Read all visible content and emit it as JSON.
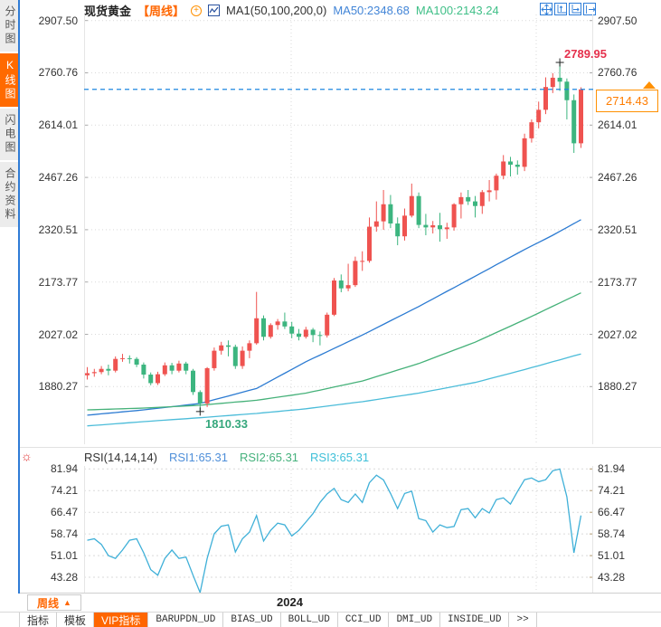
{
  "header": {
    "symbol": "现货黄金",
    "period": "【周线】",
    "ma_settings": "MA1(50,100,200,0)",
    "ma50_label": "MA50:2348.68",
    "ma100_label": "MA100:2143.24"
  },
  "sidebar": {
    "items": [
      {
        "label": "分时图",
        "active": false
      },
      {
        "label": "K线图",
        "active": true
      },
      {
        "label": "闪电图",
        "active": false
      },
      {
        "label": "合约资料",
        "active": false
      }
    ]
  },
  "annotations": {
    "high": "2789.95",
    "low": "1810.33",
    "current_price": "2714.43"
  },
  "rsi_header": {
    "title": "RSI(14,14,14)",
    "rsi1": "RSI1:65.31",
    "rsi2": "RSI2:65.31",
    "rsi3": "RSI3:65.31"
  },
  "bottom": {
    "period_button": "周线",
    "period_arrow": "▲",
    "year_label": "2024",
    "tabs": [
      {
        "label": "指标",
        "active": false,
        "en": false
      },
      {
        "label": "模板",
        "active": false,
        "en": false
      },
      {
        "label": "VIP指标",
        "active": true,
        "en": false
      },
      {
        "label": "BARUPDN_UD",
        "active": false,
        "en": true
      },
      {
        "label": "BIAS_UD",
        "active": false,
        "en": true
      },
      {
        "label": "BOLL_UD",
        "active": false,
        "en": true
      },
      {
        "label": "CCI_UD",
        "active": false,
        "en": true
      },
      {
        "label": "DMI_UD",
        "active": false,
        "en": true
      },
      {
        "label": "INSIDE_UD",
        "active": false,
        "en": true
      },
      {
        "label": ">>",
        "active": false,
        "en": true
      }
    ]
  },
  "colors": {
    "accent": "#ff6600",
    "up_candle": "#ef5350",
    "down_candle": "#3cb57f",
    "ma50": "#2c7bd2",
    "ma100": "#45b179",
    "ma200": "#4bbcd9",
    "rsi_line": "#3fb0d8",
    "current_price_line": "#1e87e0",
    "high_label": "#e5304c",
    "low_label": "#35a77c"
  },
  "chart_data": [
    {
      "type": "candlestick",
      "title": "现货黄金 周线",
      "y_ticks": [
        2907.5,
        2760.76,
        2614.01,
        2467.26,
        2320.51,
        2173.77,
        2027.02,
        1880.27
      ],
      "x_axis_label": "2024",
      "high": 2789.95,
      "low": 1810.33,
      "current": 2714.43,
      "high_index": 67,
      "low_index": 16,
      "candles_ohlc": [
        [
          1912,
          1935,
          1900,
          1918
        ],
        [
          1918,
          1930,
          1908,
          1921
        ],
        [
          1921,
          1938,
          1915,
          1930
        ],
        [
          1930,
          1942,
          1912,
          1925
        ],
        [
          1925,
          1965,
          1920,
          1958
        ],
        [
          1958,
          1972,
          1950,
          1960
        ],
        [
          1960,
          1968,
          1945,
          1958
        ],
        [
          1958,
          1963,
          1935,
          1942
        ],
        [
          1942,
          1948,
          1903,
          1914
        ],
        [
          1914,
          1920,
          1884,
          1890
        ],
        [
          1890,
          1922,
          1885,
          1915
        ],
        [
          1915,
          1948,
          1910,
          1940
        ],
        [
          1940,
          1947,
          1915,
          1925
        ],
        [
          1925,
          1953,
          1920,
          1945
        ],
        [
          1945,
          1950,
          1915,
          1925
        ],
        [
          1925,
          1930,
          1857,
          1865
        ],
        [
          1865,
          1870,
          1810.33,
          1833
        ],
        [
          1833,
          1935,
          1823,
          1932
        ],
        [
          1932,
          1990,
          1925,
          1981
        ],
        [
          1981,
          2006,
          1970,
          1996
        ],
        [
          1996,
          2010,
          1965,
          1992
        ],
        [
          1992,
          1998,
          1930,
          1938
        ],
        [
          1938,
          1993,
          1930,
          1981
        ],
        [
          1981,
          2010,
          1960,
          2002
        ],
        [
          2002,
          2146,
          1998,
          2072
        ],
        [
          2072,
          2080,
          2010,
          2020
        ],
        [
          2020,
          2058,
          2015,
          2053
        ],
        [
          2053,
          2070,
          2040,
          2063
        ],
        [
          2063,
          2088,
          2042,
          2049
        ],
        [
          2049,
          2062,
          2016,
          2029
        ],
        [
          2029,
          2042,
          2010,
          2020
        ],
        [
          2020,
          2048,
          2015,
          2040
        ],
        [
          2040,
          2045,
          2005,
          2025
        ],
        [
          2025,
          2035,
          1996,
          2024
        ],
        [
          2024,
          2088,
          2018,
          2082
        ],
        [
          2082,
          2185,
          2078,
          2178
        ],
        [
          2178,
          2195,
          2145,
          2156
        ],
        [
          2156,
          2225,
          2148,
          2165
        ],
        [
          2165,
          2245,
          2160,
          2233
        ],
        [
          2233,
          2260,
          2205,
          2233
        ],
        [
          2233,
          2355,
          2228,
          2329
        ],
        [
          2329,
          2400,
          2315,
          2344
        ],
        [
          2344,
          2432,
          2320,
          2392
        ],
        [
          2392,
          2418,
          2325,
          2338
        ],
        [
          2338,
          2355,
          2277,
          2302
        ],
        [
          2302,
          2380,
          2290,
          2360
        ],
        [
          2360,
          2450,
          2355,
          2415
        ],
        [
          2415,
          2425,
          2325,
          2334
        ],
        [
          2334,
          2365,
          2305,
          2327
        ],
        [
          2327,
          2345,
          2310,
          2333
        ],
        [
          2333,
          2368,
          2287,
          2322
        ],
        [
          2322,
          2340,
          2295,
          2327
        ],
        [
          2327,
          2395,
          2318,
          2392
        ],
        [
          2392,
          2425,
          2352,
          2412
        ],
        [
          2412,
          2432,
          2390,
          2400
        ],
        [
          2400,
          2415,
          2355,
          2387
        ],
        [
          2387,
          2432,
          2365,
          2426
        ],
        [
          2426,
          2460,
          2400,
          2431
        ],
        [
          2431,
          2478,
          2405,
          2472
        ],
        [
          2472,
          2530,
          2462,
          2512
        ],
        [
          2512,
          2525,
          2470,
          2503
        ],
        [
          2503,
          2515,
          2475,
          2497
        ],
        [
          2497,
          2590,
          2485,
          2577
        ],
        [
          2577,
          2630,
          2565,
          2622
        ],
        [
          2622,
          2680,
          2605,
          2657
        ],
        [
          2657,
          2748,
          2645,
          2721
        ],
        [
          2721,
          2760,
          2704,
          2747
        ],
        [
          2747,
          2789.95,
          2710,
          2736
        ],
        [
          2736,
          2745,
          2630,
          2684
        ],
        [
          2684,
          2700,
          2536,
          2563
        ],
        [
          2563,
          2720,
          2550,
          2714.43
        ]
      ],
      "ma_series": [
        {
          "name": "MA50",
          "last": 2348.68,
          "color_key": "ma50",
          "points": [
            [
              0,
              1800
            ],
            [
              8,
              1815
            ],
            [
              16,
              1833
            ],
            [
              24,
              1875
            ],
            [
              31,
              1950
            ],
            [
              39,
              2025
            ],
            [
              47,
              2105
            ],
            [
              55,
              2190
            ],
            [
              62,
              2265
            ],
            [
              66,
              2305
            ],
            [
              70,
              2348.68
            ]
          ]
        },
        {
          "name": "MA100",
          "last": 2143.24,
          "color_key": "ma100",
          "points": [
            [
              0,
              1815
            ],
            [
              8,
              1820
            ],
            [
              16,
              1828
            ],
            [
              24,
              1842
            ],
            [
              31,
              1862
            ],
            [
              39,
              1896
            ],
            [
              47,
              1945
            ],
            [
              55,
              2005
            ],
            [
              62,
              2068
            ],
            [
              70,
              2143.24
            ]
          ]
        },
        {
          "name": "MA200",
          "last": 1972,
          "color_key": "ma200",
          "points": [
            [
              0,
              1770
            ],
            [
              8,
              1782
            ],
            [
              16,
              1793
            ],
            [
              24,
              1805
            ],
            [
              31,
              1818
            ],
            [
              39,
              1838
            ],
            [
              47,
              1862
            ],
            [
              55,
              1892
            ],
            [
              62,
              1928
            ],
            [
              70,
              1972
            ]
          ]
        }
      ]
    },
    {
      "type": "line",
      "name": "RSI(14,14,14)",
      "y_ticks": [
        81.94,
        74.21,
        66.47,
        58.74,
        51.01,
        43.28
      ],
      "last_value": 65.31,
      "values": [
        56.5,
        57,
        55,
        51,
        50,
        53,
        56.5,
        57,
        52,
        46,
        44,
        50,
        53,
        50,
        50.5,
        44,
        37.8,
        50,
        58.8,
        61.5,
        62,
        52.3,
        57,
        59.4,
        65.3,
        56.2,
        60,
        62.6,
        62,
        58,
        60,
        63,
        66,
        70,
        73,
        75,
        71,
        70,
        73,
        70,
        77,
        79.7,
        78,
        73.2,
        67.8,
        73.2,
        74,
        64.2,
        63.5,
        59.4,
        62,
        61,
        61.4,
        67.4,
        67.8,
        64.5,
        67.8,
        66.2,
        71,
        71.6,
        69.4,
        73.9,
        78.1,
        78.7,
        77.4,
        78.1,
        81.3,
        81.9,
        72,
        52,
        65.31
      ]
    }
  ]
}
